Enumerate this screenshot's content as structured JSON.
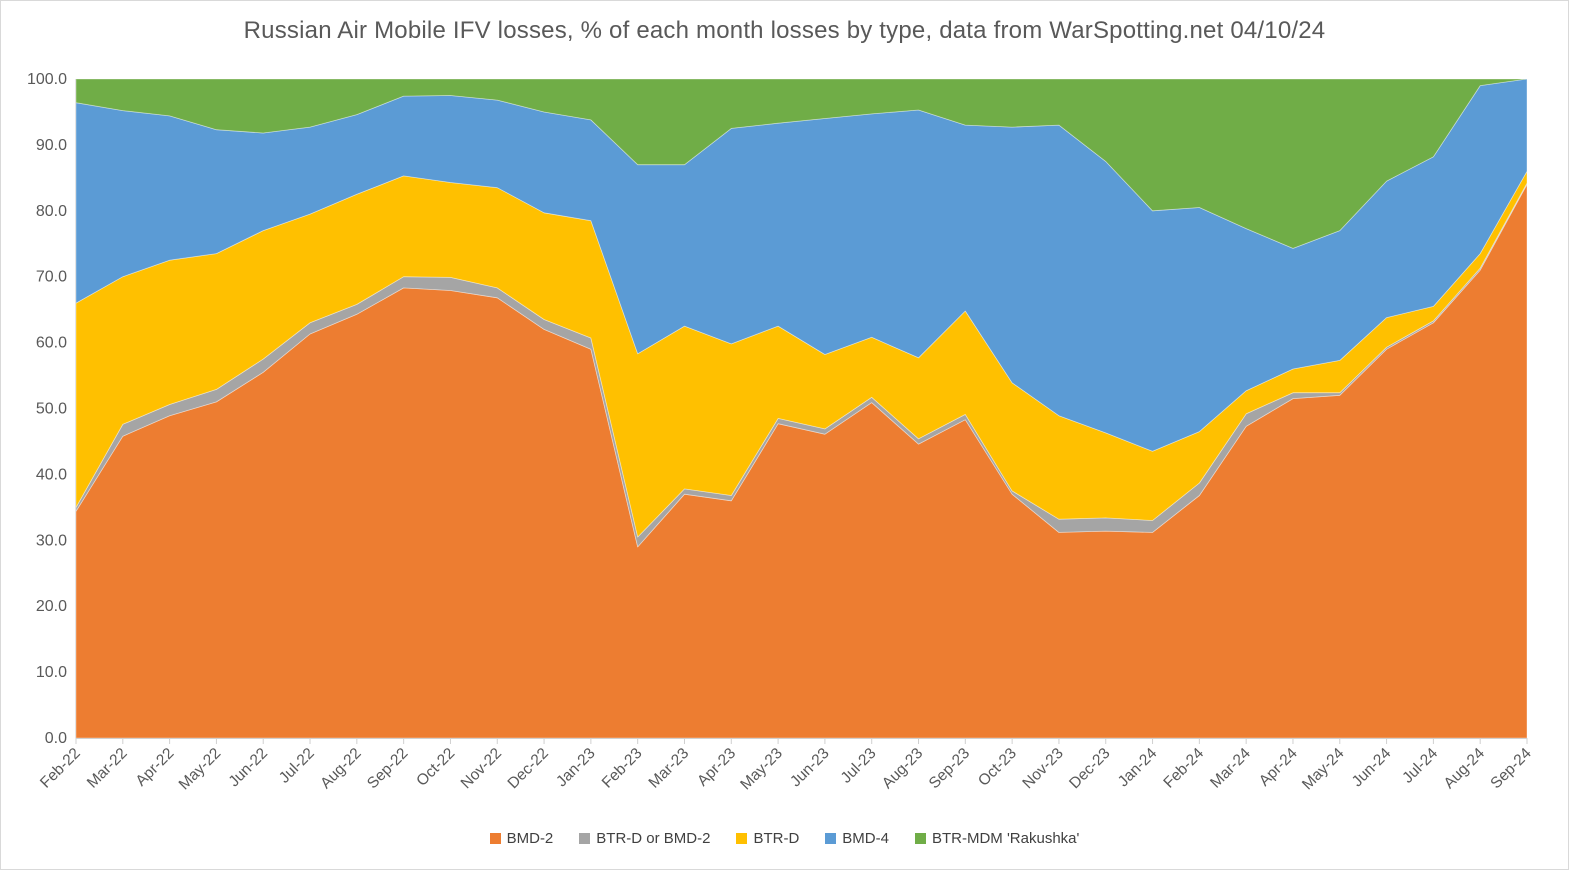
{
  "chart": {
    "title": "Russian Air Mobile IFV losses, % of each month losses by type, data from WarSpotting.net 04/10/24"
  },
  "axis": {
    "y_tick_labels": [
      "0.0",
      "10.0",
      "20.0",
      "30.0",
      "40.0",
      "50.0",
      "60.0",
      "70.0",
      "80.0",
      "90.0",
      "100.0"
    ]
  },
  "chart_data": {
    "type": "area",
    "stacking": "percent",
    "title": "Russian Air Mobile IFV losses, % of each month losses by type, data from WarSpotting.net 04/10/24",
    "xlabel": "",
    "ylabel": "",
    "ylim": [
      0,
      100
    ],
    "y_step": 10,
    "grid": false,
    "legend_position": "bottom",
    "categories": [
      "Feb-22",
      "Mar-22",
      "Apr-22",
      "May-22",
      "Jun-22",
      "Jul-22",
      "Aug-22",
      "Sep-22",
      "Oct-22",
      "Nov-22",
      "Dec-22",
      "Jan-23",
      "Feb-23",
      "Mar-23",
      "Apr-23",
      "May-23",
      "Jun-23",
      "Jul-23",
      "Aug-23",
      "Sep-23",
      "Oct-23",
      "Nov-23",
      "Dec-23",
      "Jan-24",
      "Feb-24",
      "Mar-24",
      "Apr-24",
      "May-24",
      "Jun-24",
      "Jul-24",
      "Aug-24",
      "Sep-24"
    ],
    "series": [
      {
        "name": "BMD-2",
        "color": "#ED7D31",
        "values": [
          34.4,
          45.8,
          48.9,
          51.0,
          55.5,
          61.3,
          64.3,
          68.3,
          67.9,
          66.8,
          62.0,
          59.0,
          29.0,
          37.0,
          36.0,
          47.7,
          46.1,
          50.9,
          44.6,
          48.3,
          37.0,
          31.2,
          31.4,
          31.2,
          36.8,
          47.3,
          51.5,
          52.0,
          59.0,
          63.0,
          71.0,
          84.0
        ]
      },
      {
        "name": "BTR-D or BMD-2",
        "color": "#A5A5A5",
        "values": [
          0.6,
          1.8,
          1.7,
          1.9,
          2.0,
          1.7,
          1.5,
          1.7,
          2.0,
          1.5,
          1.5,
          1.7,
          1.5,
          0.8,
          0.8,
          0.8,
          0.8,
          0.8,
          0.8,
          0.8,
          0.5,
          2.0,
          2.0,
          1.8,
          1.9,
          1.9,
          0.9,
          0.4,
          0.3,
          0.3,
          0.3,
          0.2
        ]
      },
      {
        "name": "BTR-D",
        "color": "#FFC000",
        "values": [
          31.0,
          22.4,
          21.9,
          20.6,
          19.5,
          16.5,
          16.7,
          15.3,
          14.4,
          15.2,
          16.2,
          17.8,
          27.8,
          24.7,
          23.0,
          14.0,
          11.3,
          9.1,
          12.3,
          15.7,
          16.4,
          15.7,
          12.9,
          10.5,
          7.8,
          3.5,
          3.6,
          4.9,
          4.5,
          2.2,
          2.2,
          1.8
        ]
      },
      {
        "name": "BMD-4",
        "color": "#5B9BD5",
        "values": [
          30.4,
          25.2,
          21.9,
          18.8,
          14.8,
          13.2,
          12.1,
          12.1,
          13.2,
          13.3,
          15.3,
          15.3,
          28.7,
          24.5,
          32.7,
          30.8,
          35.8,
          33.9,
          37.6,
          28.2,
          38.8,
          44.1,
          41.2,
          36.5,
          34.0,
          24.6,
          18.3,
          19.7,
          20.7,
          22.7,
          25.5,
          14.0
        ]
      },
      {
        "name": "BTR-MDM 'Rakushka'",
        "color": "#70AD47",
        "values": [
          3.6,
          4.8,
          5.6,
          7.7,
          8.2,
          7.3,
          5.4,
          2.6,
          2.5,
          3.2,
          5.0,
          6.2,
          13.0,
          13.0,
          7.5,
          6.7,
          6.0,
          5.3,
          4.7,
          7.0,
          7.3,
          7.0,
          12.5,
          20.0,
          19.5,
          22.7,
          25.7,
          23.0,
          15.5,
          11.8,
          1.0,
          0.0
        ]
      }
    ]
  }
}
